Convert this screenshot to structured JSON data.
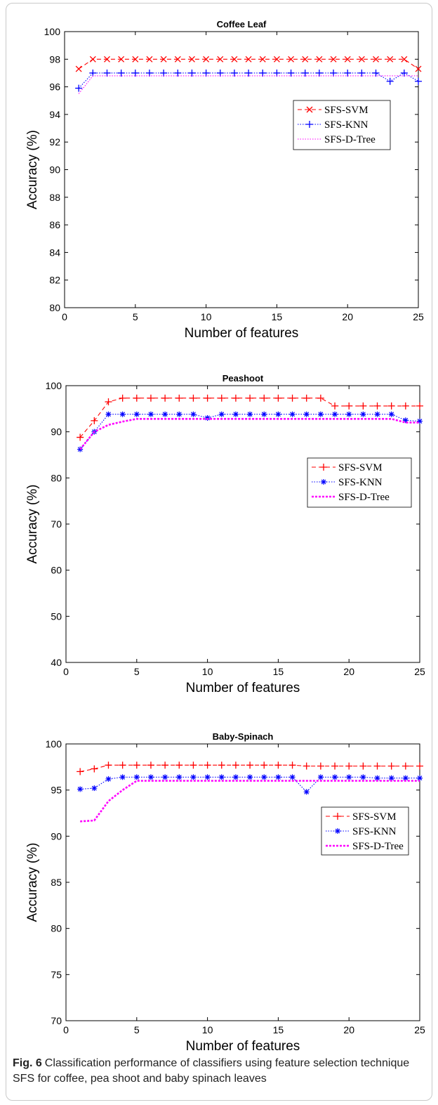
{
  "caption": {
    "label": "Fig. 6",
    "text": "Classification performance of classifiers using feature selection technique SFS for coffee, pea shoot and baby spinach leaves"
  },
  "chart_data": [
    {
      "type": "line",
      "title": "Coffee Leaf",
      "xlabel": "Number of features",
      "ylabel": "Accuracy (%)",
      "xlim": [
        0,
        25
      ],
      "ylim": [
        80,
        100
      ],
      "xticks": [
        0,
        5,
        10,
        15,
        20,
        25
      ],
      "yticks": [
        80,
        82,
        84,
        86,
        88,
        90,
        92,
        94,
        96,
        98,
        100
      ],
      "grid": false,
      "legend_position": "upper-right",
      "x": [
        1,
        2,
        3,
        4,
        5,
        6,
        7,
        8,
        9,
        10,
        11,
        12,
        13,
        14,
        15,
        16,
        17,
        18,
        19,
        20,
        21,
        22,
        23,
        24,
        25
      ],
      "series": [
        {
          "name": "SFS-SVM",
          "color": "#ff0000",
          "dash": "6,4",
          "marker": "x",
          "values": [
            97.3,
            98,
            98,
            98,
            98,
            98,
            98,
            98,
            98,
            98,
            98,
            98,
            98,
            98,
            98,
            98,
            98,
            98,
            98,
            98,
            98,
            98,
            98,
            98,
            97.3
          ]
        },
        {
          "name": "SFS-KNN",
          "color": "#0000ff",
          "dash": "1.5,2",
          "marker": "+",
          "values": [
            95.9,
            97,
            97,
            97,
            97,
            97,
            97,
            97,
            97,
            97,
            97,
            97,
            97,
            97,
            97,
            97,
            97,
            97,
            97,
            97,
            97,
            97,
            96.4,
            97,
            96.4
          ]
        },
        {
          "name": "SFS-D-Tree",
          "color": "#ff00ff",
          "dash": "1.5,2",
          "marker": "none",
          "values": [
            95.5,
            96.8,
            96.8,
            96.8,
            96.8,
            96.8,
            96.8,
            96.8,
            96.8,
            96.8,
            96.8,
            96.8,
            96.8,
            96.8,
            96.8,
            96.8,
            96.8,
            96.8,
            96.8,
            96.8,
            96.8,
            96.8,
            96.8,
            96.8,
            96.8
          ]
        }
      ]
    },
    {
      "type": "line",
      "title": "Peashoot",
      "xlabel": "Number of features",
      "ylabel": "Accuracy (%)",
      "xlim": [
        0,
        25
      ],
      "ylim": [
        40,
        100
      ],
      "xticks": [
        0,
        5,
        10,
        15,
        20,
        25
      ],
      "yticks": [
        40,
        50,
        60,
        70,
        80,
        90,
        100
      ],
      "grid": false,
      "legend_position": "right",
      "x": [
        1,
        2,
        3,
        4,
        5,
        6,
        7,
        8,
        9,
        10,
        11,
        12,
        13,
        14,
        15,
        16,
        17,
        18,
        19,
        20,
        21,
        22,
        23,
        24,
        25
      ],
      "series": [
        {
          "name": "SFS-SVM",
          "color": "#ff0000",
          "dash": "6,4",
          "marker": "+",
          "values": [
            88.8,
            92.4,
            96.5,
            97.3,
            97.3,
            97.3,
            97.3,
            97.3,
            97.3,
            97.3,
            97.3,
            97.3,
            97.3,
            97.3,
            97.3,
            97.3,
            97.3,
            97.3,
            95.6,
            95.6,
            95.6,
            95.6,
            95.6,
            95.6,
            95.6
          ]
        },
        {
          "name": "SFS-KNN",
          "color": "#0000ff",
          "dash": "1.5,2",
          "marker": "*",
          "values": [
            86.2,
            90,
            93.8,
            93.8,
            93.8,
            93.8,
            93.8,
            93.8,
            93.8,
            93,
            93.8,
            93.8,
            93.8,
            93.8,
            93.8,
            93.8,
            93.8,
            93.8,
            93.8,
            93.8,
            93.8,
            93.8,
            93.8,
            92.5,
            92.3
          ]
        },
        {
          "name": "SFS-D-Tree",
          "color": "#ff00ff",
          "dash": "3,2",
          "marker": "none",
          "width": 2.6,
          "values": [
            86.2,
            90,
            91.5,
            92.2,
            92.8,
            92.8,
            92.8,
            92.8,
            92.8,
            92.8,
            92.8,
            92.8,
            92.8,
            92.8,
            92.8,
            92.8,
            92.8,
            92.8,
            92.8,
            92.8,
            92.8,
            92.8,
            92.8,
            92,
            92
          ]
        }
      ]
    },
    {
      "type": "line",
      "title": "Baby-Spinach",
      "xlabel": "Number of features",
      "ylabel": "Accuracy (%)",
      "xlim": [
        0,
        25
      ],
      "ylim": [
        70,
        100
      ],
      "xticks": [
        0,
        5,
        10,
        15,
        20,
        25
      ],
      "yticks": [
        70,
        75,
        80,
        85,
        90,
        95,
        100
      ],
      "grid": false,
      "legend_position": "right",
      "x": [
        1,
        2,
        3,
        4,
        5,
        6,
        7,
        8,
        9,
        10,
        11,
        12,
        13,
        14,
        15,
        16,
        17,
        18,
        19,
        20,
        21,
        22,
        23,
        24,
        25
      ],
      "series": [
        {
          "name": "SFS-SVM",
          "color": "#ff0000",
          "dash": "6,4",
          "marker": "+",
          "values": [
            97,
            97.3,
            97.7,
            97.7,
            97.7,
            97.7,
            97.7,
            97.7,
            97.7,
            97.7,
            97.7,
            97.7,
            97.7,
            97.7,
            97.7,
            97.7,
            97.6,
            97.6,
            97.6,
            97.6,
            97.6,
            97.6,
            97.6,
            97.6,
            97.6
          ]
        },
        {
          "name": "SFS-KNN",
          "color": "#0000ff",
          "dash": "1.5,2",
          "marker": "*",
          "values": [
            95.1,
            95.2,
            96.2,
            96.4,
            96.4,
            96.4,
            96.4,
            96.4,
            96.4,
            96.4,
            96.4,
            96.4,
            96.4,
            96.4,
            96.4,
            96.4,
            94.8,
            96.4,
            96.4,
            96.4,
            96.4,
            96.3,
            96.3,
            96.3,
            96.3
          ]
        },
        {
          "name": "SFS-D-Tree",
          "color": "#ff00ff",
          "dash": "3,2",
          "marker": "none",
          "width": 2.6,
          "values": [
            91.6,
            91.7,
            93.8,
            95,
            96,
            96,
            96,
            96,
            96,
            96,
            96,
            96,
            96,
            96,
            96,
            96,
            96,
            96,
            96,
            96,
            96,
            96,
            96,
            96,
            96
          ]
        }
      ]
    }
  ]
}
